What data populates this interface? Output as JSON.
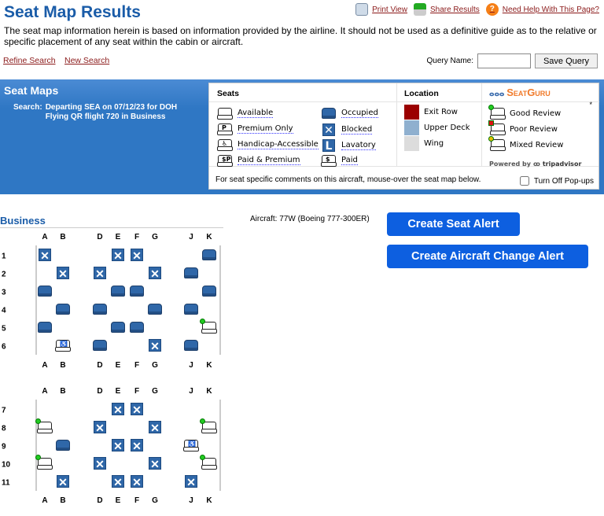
{
  "header": {
    "title": "Seat Map Results",
    "print_view": "Print View",
    "share_results": "Share Results",
    "help": "Need Help With This Page?",
    "intro": "The seat map information herein is based on information provided by the airline. It should not be used as a definitive guide as to the relative or specific placement of any seat within the cabin or aircraft.",
    "refine_search": "Refine Search",
    "new_search": "New Search",
    "query_name_label": "Query Name:",
    "query_name_value": "",
    "save_query": "Save Query"
  },
  "band": {
    "title": "Seat Maps",
    "search_label": "Search:",
    "search_line1": "Departing SEA on 07/12/23 for DOH",
    "search_line2": "Flying QR flight 720 in Business"
  },
  "legend": {
    "seats_title": "Seats",
    "location_title": "Location",
    "seatguru": "SeatGuru",
    "seats": [
      {
        "label": "Available",
        "icon": "available"
      },
      {
        "label": "Premium Only",
        "icon": "premium"
      },
      {
        "label": "Handicap-Accessible",
        "icon": "handicap"
      },
      {
        "label": "Paid & Premium",
        "icon": "paid-premium"
      },
      {
        "label": "Occupied",
        "icon": "occupied"
      },
      {
        "label": "Blocked",
        "icon": "blocked"
      },
      {
        "label": "Lavatory",
        "icon": "lavatory"
      },
      {
        "label": "Paid",
        "icon": "paid"
      }
    ],
    "locations": [
      {
        "label": "Exit Row",
        "color": "#9b0000"
      },
      {
        "label": "Upper Deck",
        "color": "#8fb0cf"
      },
      {
        "label": "Wing",
        "color": "#dcdcdc"
      }
    ],
    "reviews": [
      {
        "label": "Good Review",
        "color": "#22cc22"
      },
      {
        "label": "Poor Review",
        "color": "#dd1111"
      },
      {
        "label": "Mixed Review",
        "color": "#e8c000"
      }
    ],
    "powered_by": "Powered by",
    "tripadvisor": "tripadvisor",
    "asterisk": "*",
    "footer": "For seat specific comments on this aircraft, mouse-over the seat map below.",
    "turn_off_popups": "Turn Off Pop-ups"
  },
  "cabin": {
    "name": "Business",
    "aircraft": "Aircraft: 77W (Boeing 777-300ER)",
    "columns": [
      "A",
      "B",
      "D",
      "E",
      "F",
      "G",
      "J",
      "K"
    ],
    "sections": [
      {
        "rows": [
          {
            "num": "1",
            "seats": [
              "X",
              "",
              "",
              "X",
              "X",
              "",
              "",
              "O"
            ]
          },
          {
            "num": "2",
            "seats": [
              "",
              "X",
              "X",
              "",
              "",
              "X",
              "O",
              ""
            ]
          },
          {
            "num": "3",
            "seats": [
              "O",
              "",
              "",
              "O",
              "O",
              "",
              "",
              "O"
            ]
          },
          {
            "num": "4",
            "seats": [
              "",
              "O",
              "O",
              "",
              "",
              "O",
              "O",
              ""
            ]
          },
          {
            "num": "5",
            "seats": [
              "O",
              "",
              "",
              "O",
              "O",
              "",
              "",
              "G"
            ]
          },
          {
            "num": "6",
            "seats": [
              "",
              "H",
              "O",
              "",
              "",
              "X",
              "O",
              ""
            ]
          }
        ]
      },
      {
        "rows": [
          {
            "num": "7",
            "seats": [
              "",
              "",
              "",
              "X",
              "X",
              "",
              "",
              ""
            ]
          },
          {
            "num": "8",
            "seats": [
              "G",
              "",
              "X",
              "",
              "",
              "X",
              "",
              "G"
            ]
          },
          {
            "num": "9",
            "seats": [
              "",
              "O",
              "",
              "X",
              "X",
              "",
              "H",
              ""
            ]
          },
          {
            "num": "10",
            "seats": [
              "G",
              "",
              "X",
              "",
              "",
              "X",
              "",
              "G"
            ]
          },
          {
            "num": "11",
            "seats": [
              "",
              "X",
              "",
              "X",
              "X",
              "",
              "X",
              ""
            ]
          }
        ]
      }
    ]
  },
  "actions": {
    "create_seat_alert": "Create Seat Alert",
    "create_aircraft_change_alert": "Create Aircraft Change Alert"
  }
}
